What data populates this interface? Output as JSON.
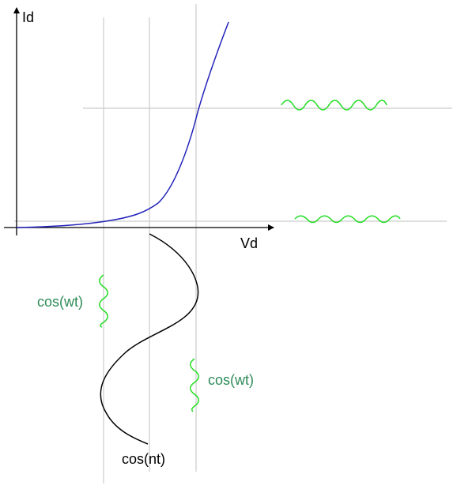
{
  "labels": {
    "y_axis": "Id",
    "x_axis": "Vd",
    "left_signal": "cos(wt)",
    "right_signal": "cos(wt)",
    "bias_signal": "cos(nt)"
  },
  "colors": {
    "curve": "#2222bb",
    "signal_wave": "#22dd22",
    "signal_text": "#2e8b57",
    "axis": "#000000",
    "guide": "#cccccc"
  }
}
